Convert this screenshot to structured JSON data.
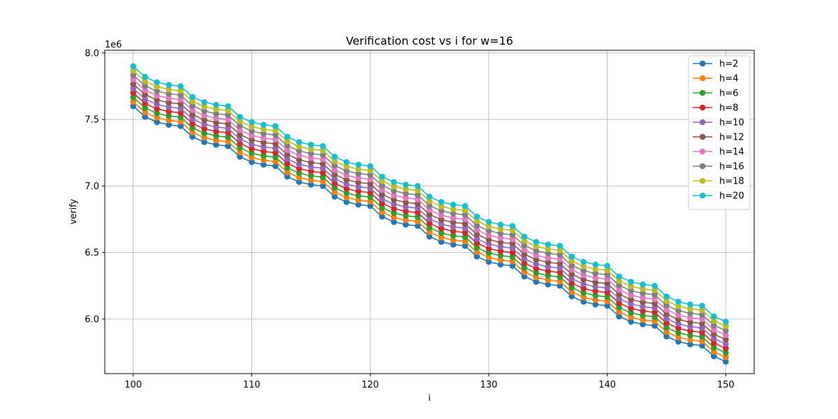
{
  "chart_data": {
    "type": "line",
    "title": "Verification cost vs i for w=16",
    "xlabel": "i",
    "ylabel": "verify",
    "y_offset_label": "1e6",
    "xlim": [
      97.6,
      152.4
    ],
    "ylim": [
      5.59,
      8.02
    ],
    "x_ticks": [
      100,
      110,
      120,
      130,
      140,
      150
    ],
    "x_tick_labels": [
      "100",
      "110",
      "120",
      "130",
      "140",
      "150"
    ],
    "y_ticks": [
      6.0,
      6.5,
      7.0,
      7.5,
      8.0
    ],
    "y_tick_labels": [
      "6.0",
      "6.5",
      "7.0",
      "7.5",
      "8.0"
    ],
    "grid": true,
    "legend_position": "top-right",
    "x": [
      100,
      101,
      102,
      103,
      104,
      105,
      106,
      107,
      108,
      109,
      110,
      111,
      112,
      113,
      114,
      115,
      116,
      117,
      118,
      119,
      120,
      121,
      122,
      123,
      124,
      125,
      126,
      127,
      128,
      129,
      130,
      131,
      132,
      133,
      134,
      135,
      136,
      137,
      138,
      139,
      140,
      141,
      142,
      143,
      144,
      145,
      146,
      147,
      148,
      149,
      150
    ],
    "base_values": [
      7.6,
      7.52,
      7.48,
      7.46,
      7.45,
      7.37,
      7.33,
      7.31,
      7.3,
      7.22,
      7.18,
      7.16,
      7.15,
      7.07,
      7.03,
      7.01,
      7.0,
      6.92,
      6.88,
      6.86,
      6.85,
      6.77,
      6.73,
      6.71,
      6.7,
      6.62,
      6.58,
      6.56,
      6.55,
      6.47,
      6.43,
      6.41,
      6.4,
      6.32,
      6.28,
      6.26,
      6.25,
      6.17,
      6.13,
      6.11,
      6.1,
      6.02,
      5.98,
      5.96,
      5.95,
      5.87,
      5.83,
      5.81,
      5.8,
      5.72,
      5.68
    ],
    "series": [
      {
        "name": "h=2",
        "color": "#1f77b4",
        "offset": 0.0
      },
      {
        "name": "h=4",
        "color": "#ff7f0e",
        "offset": 0.0333
      },
      {
        "name": "h=6",
        "color": "#2ca02c",
        "offset": 0.0667
      },
      {
        "name": "h=8",
        "color": "#d62728",
        "offset": 0.1
      },
      {
        "name": "h=10",
        "color": "#9467bd",
        "offset": 0.1333
      },
      {
        "name": "h=12",
        "color": "#8c564b",
        "offset": 0.1667
      },
      {
        "name": "h=14",
        "color": "#e377c2",
        "offset": 0.2
      },
      {
        "name": "h=16",
        "color": "#7f7f7f",
        "offset": 0.2333
      },
      {
        "name": "h=18",
        "color": "#bcbd22",
        "offset": 0.2667
      },
      {
        "name": "h=20",
        "color": "#17becf",
        "offset": 0.3
      }
    ]
  }
}
